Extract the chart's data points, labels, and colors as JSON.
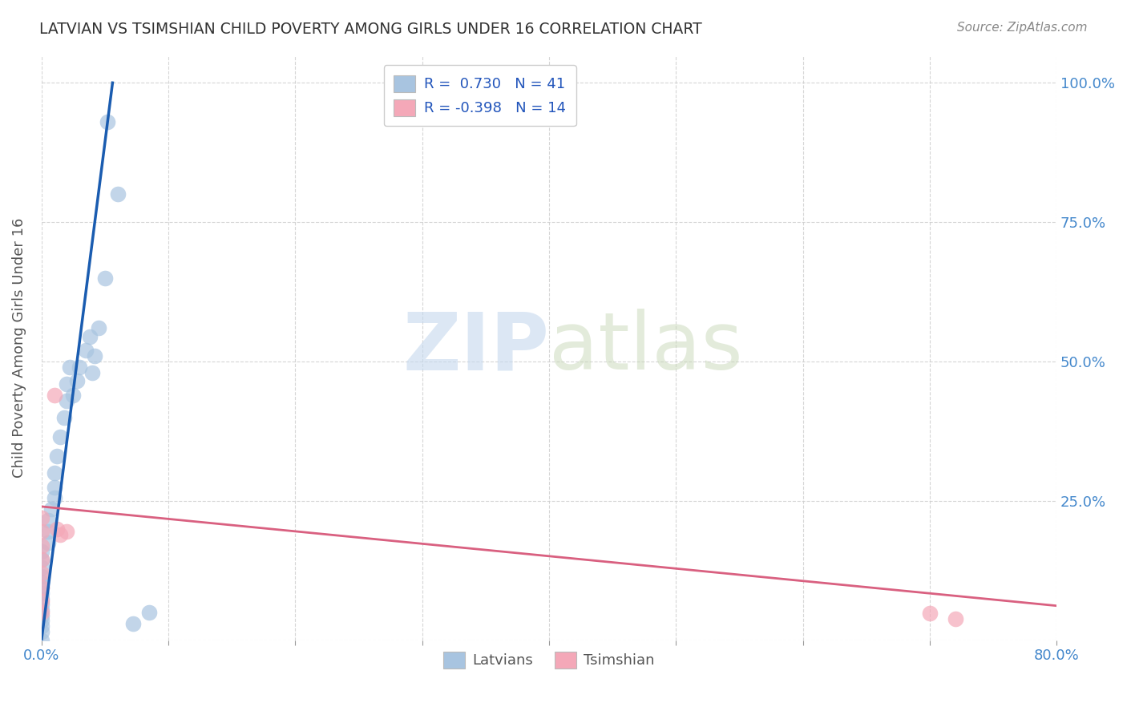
{
  "title": "LATVIAN VS TSIMSHIAN CHILD POVERTY AMONG GIRLS UNDER 16 CORRELATION CHART",
  "source": "Source: ZipAtlas.com",
  "ylabel": "Child Poverty Among Girls Under 16",
  "watermark_zip": "ZIP",
  "watermark_atlas": "atlas",
  "xmin": 0.0,
  "xmax": 0.8,
  "ymin": 0.0,
  "ymax": 1.05,
  "yticks": [
    0.0,
    0.25,
    0.5,
    0.75,
    1.0
  ],
  "ytick_labels_right": [
    "",
    "25.0%",
    "50.0%",
    "75.0%",
    "100.0%"
  ],
  "xticks": [
    0.0,
    0.1,
    0.2,
    0.3,
    0.4,
    0.5,
    0.6,
    0.7,
    0.8
  ],
  "xtick_labels": [
    "0.0%",
    "",
    "",
    "",
    "",
    "",
    "",
    "",
    "80.0%"
  ],
  "legend_R1": "0.730",
  "legend_N1": "41",
  "legend_R2": "-0.398",
  "legend_N2": "14",
  "latvian_color": "#a8c4e0",
  "tsimshian_color": "#f4a8b8",
  "trend_latvian_color": "#1a5cb0",
  "trend_tsimshian_color": "#d96080",
  "latvian_scatter": [
    [
      0.0,
      0.0
    ],
    [
      0.0,
      0.015
    ],
    [
      0.0,
      0.025
    ],
    [
      0.0,
      0.035
    ],
    [
      0.0,
      0.045
    ],
    [
      0.0,
      0.055
    ],
    [
      0.0,
      0.065
    ],
    [
      0.0,
      0.075
    ],
    [
      0.0,
      0.085
    ],
    [
      0.0,
      0.095
    ],
    [
      0.0,
      0.105
    ],
    [
      0.0,
      0.115
    ],
    [
      0.0,
      0.13
    ],
    [
      0.0,
      0.145
    ],
    [
      0.0,
      0.16
    ],
    [
      0.005,
      0.175
    ],
    [
      0.005,
      0.195
    ],
    [
      0.005,
      0.215
    ],
    [
      0.008,
      0.235
    ],
    [
      0.01,
      0.255
    ],
    [
      0.01,
      0.275
    ],
    [
      0.01,
      0.3
    ],
    [
      0.012,
      0.33
    ],
    [
      0.015,
      0.365
    ],
    [
      0.018,
      0.4
    ],
    [
      0.02,
      0.43
    ],
    [
      0.02,
      0.46
    ],
    [
      0.022,
      0.49
    ],
    [
      0.025,
      0.44
    ],
    [
      0.028,
      0.465
    ],
    [
      0.03,
      0.49
    ],
    [
      0.035,
      0.52
    ],
    [
      0.038,
      0.545
    ],
    [
      0.04,
      0.48
    ],
    [
      0.042,
      0.51
    ],
    [
      0.045,
      0.56
    ],
    [
      0.05,
      0.65
    ],
    [
      0.052,
      0.93
    ],
    [
      0.06,
      0.8
    ],
    [
      0.072,
      0.03
    ],
    [
      0.085,
      0.05
    ]
  ],
  "tsimshian_scatter": [
    [
      0.0,
      0.22
    ],
    [
      0.0,
      0.195
    ],
    [
      0.0,
      0.17
    ],
    [
      0.0,
      0.145
    ],
    [
      0.0,
      0.12
    ],
    [
      0.0,
      0.095
    ],
    [
      0.0,
      0.07
    ],
    [
      0.0,
      0.05
    ],
    [
      0.01,
      0.44
    ],
    [
      0.012,
      0.2
    ],
    [
      0.015,
      0.19
    ],
    [
      0.02,
      0.195
    ],
    [
      0.7,
      0.048
    ],
    [
      0.72,
      0.038
    ]
  ],
  "latvian_trend_x": [
    0.0,
    0.056
  ],
  "latvian_trend_y": [
    0.0,
    1.0
  ],
  "tsimshian_trend_x": [
    0.0,
    0.8
  ],
  "tsimshian_trend_y": [
    0.24,
    0.062
  ],
  "bg_color": "#ffffff",
  "grid_color": "#cccccc",
  "title_color": "#333333",
  "axis_label_color": "#555555",
  "tick_color": "#4488cc",
  "source_color": "#888888"
}
